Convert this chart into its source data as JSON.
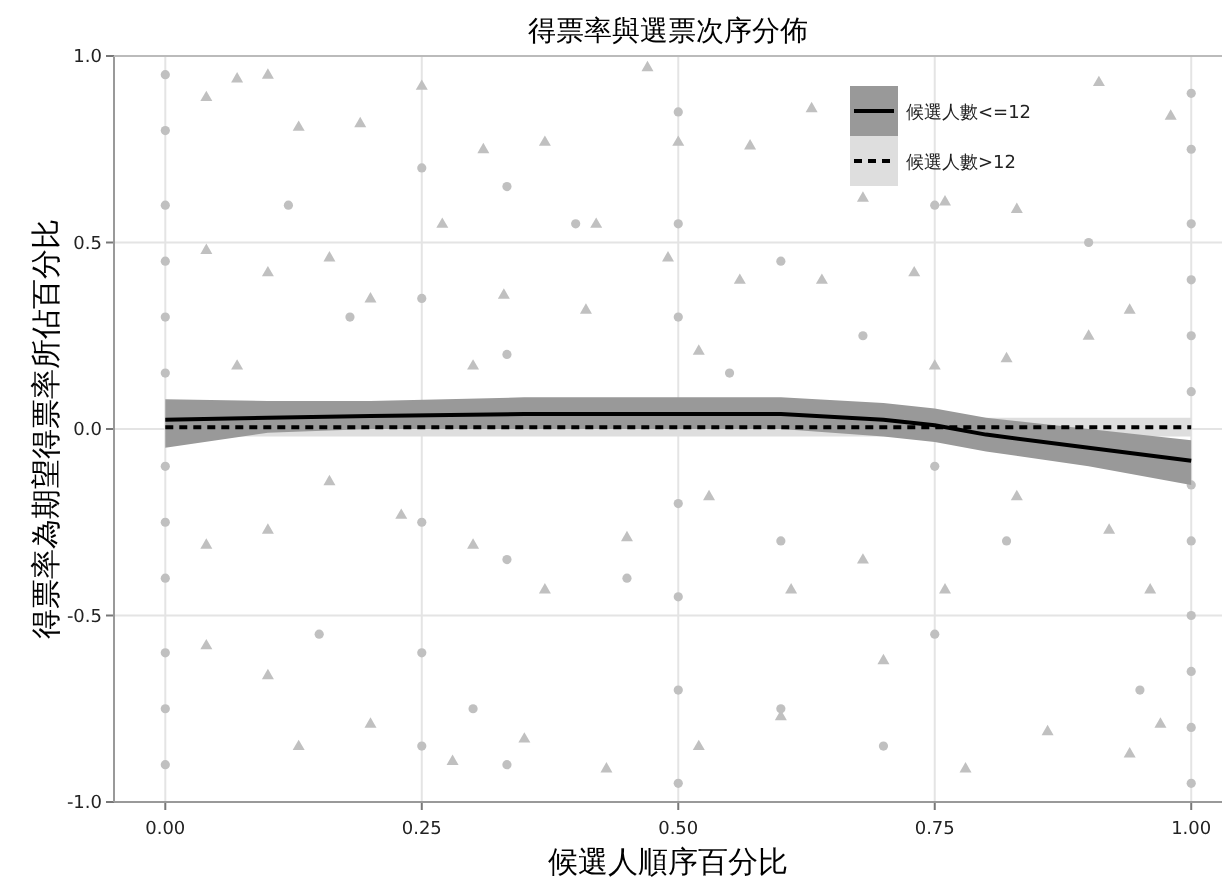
{
  "chart_data": {
    "type": "scatter",
    "title": "得票率與選票次序分佈",
    "xlabel": "候選人順序百分比",
    "ylabel": "得票率為期望得票率所佔百分比",
    "xlim": [
      -0.05,
      1.03
    ],
    "ylim": [
      -1,
      1
    ],
    "xticks": [
      {
        "value": 0,
        "label": "0.00"
      },
      {
        "value": 0.25,
        "label": "0.25"
      },
      {
        "value": 0.5,
        "label": "0.50"
      },
      {
        "value": 0.75,
        "label": "0.75"
      },
      {
        "value": 1,
        "label": "1.00"
      }
    ],
    "yticks": [
      {
        "value": -1,
        "label": "-1.0"
      },
      {
        "value": -0.5,
        "label": "-0.5"
      },
      {
        "value": 0,
        "label": "0.0"
      },
      {
        "value": 0.5,
        "label": "0.5"
      },
      {
        "value": 1,
        "label": "1.0"
      }
    ],
    "grid": true,
    "legend": "top right",
    "series": [
      {
        "marker": "triangle",
        "color": "#c0c0c0",
        "x": [
          0.04,
          0.07,
          0.1,
          0.13,
          0.19,
          0.25,
          0.31,
          0.37,
          0.42,
          0.47,
          0.5,
          0.57,
          0.63,
          0.68,
          0.76,
          0.83,
          0.91,
          0.98,
          0.04,
          0.1,
          0.16,
          0.2,
          0.27,
          0.33,
          0.41,
          0.49,
          0.56,
          0.64,
          0.73,
          0.82,
          0.9,
          0.94,
          0.07,
          0.3,
          0.52,
          0.75,
          0.04,
          0.1,
          0.16,
          0.23,
          0.3,
          0.37,
          0.45,
          0.53,
          0.61,
          0.68,
          0.76,
          0.83,
          0.92,
          0.96,
          0.04,
          0.1,
          0.13,
          0.2,
          0.28,
          0.35,
          0.43,
          0.52,
          0.6,
          0.7,
          0.78,
          0.86,
          0.94,
          0.97
        ],
        "values": [
          0.89,
          0.94,
          0.95,
          0.81,
          0.82,
          0.92,
          0.75,
          0.77,
          0.55,
          0.97,
          0.77,
          0.76,
          0.86,
          0.62,
          0.61,
          0.59,
          0.93,
          0.84,
          0.48,
          0.42,
          0.46,
          0.35,
          0.55,
          0.36,
          0.32,
          0.46,
          0.4,
          0.4,
          0.42,
          0.19,
          0.25,
          0.32,
          0.17,
          0.17,
          0.21,
          0.17,
          -0.31,
          -0.27,
          -0.14,
          -0.23,
          -0.31,
          -0.43,
          -0.29,
          -0.18,
          -0.43,
          -0.35,
          -0.43,
          -0.18,
          -0.27,
          -0.43,
          -0.58,
          -0.66,
          -0.85,
          -0.79,
          -0.89,
          -0.83,
          -0.91,
          -0.85,
          -0.77,
          -0.62,
          -0.91,
          -0.81,
          -0.87,
          -0.79
        ]
      },
      {
        "marker": "circle",
        "color": "#c0c0c0",
        "x": [
          0,
          0,
          0,
          0,
          0,
          0,
          0,
          0,
          0,
          0,
          0,
          0,
          1,
          1,
          1,
          1,
          1,
          1,
          1,
          1,
          1,
          1,
          1,
          1,
          0.5,
          0.5,
          0.5,
          0.5,
          0.5,
          0.5,
          0.5,
          0.25,
          0.25,
          0.25,
          0.25,
          0.25,
          0.333,
          0.333,
          0.333,
          0.333,
          0.6,
          0.6,
          0.6,
          0.75,
          0.75,
          0.75,
          0.12,
          0.18,
          0.4,
          0.45,
          0.68,
          0.82,
          0.9,
          0.95,
          0.15,
          0.3,
          0.55,
          0.7
        ],
        "values": [
          0.95,
          0.8,
          0.6,
          0.45,
          0.3,
          0.15,
          -0.1,
          -0.25,
          -0.4,
          -0.6,
          -0.75,
          -0.9,
          0.9,
          0.75,
          0.55,
          0.4,
          0.25,
          0.1,
          -0.15,
          -0.3,
          -0.5,
          -0.65,
          -0.8,
          -0.95,
          0.85,
          0.55,
          0.3,
          -0.2,
          -0.45,
          -0.7,
          -0.95,
          0.7,
          0.35,
          -0.25,
          -0.6,
          -0.85,
          0.65,
          0.2,
          -0.35,
          -0.9,
          0.45,
          -0.3,
          -0.75,
          0.6,
          -0.1,
          -0.55,
          0.6,
          0.3,
          0.55,
          -0.4,
          0.25,
          -0.3,
          0.5,
          -0.7,
          -0.55,
          -0.75,
          0.15,
          -0.85
        ]
      },
      {
        "type": "line",
        "name": "候選人數<=12",
        "color": "#000000",
        "line_style": "solid",
        "x": [
          0,
          0.1,
          0.2,
          0.35,
          0.5,
          0.6,
          0.7,
          0.75,
          0.8,
          0.9,
          1.0
        ],
        "values": [
          0.025,
          0.03,
          0.035,
          0.04,
          0.04,
          0.04,
          0.025,
          0.01,
          -0.015,
          -0.05,
          -0.085
        ],
        "upper": [
          0.08,
          0.075,
          0.075,
          0.085,
          0.085,
          0.085,
          0.07,
          0.055,
          0.03,
          0.0,
          -0.03
        ],
        "lower": [
          -0.05,
          -0.01,
          0.0,
          0.0,
          0.0,
          0.0,
          -0.02,
          -0.035,
          -0.06,
          -0.1,
          -0.15
        ]
      },
      {
        "type": "line",
        "name": "候選人數>12",
        "color": "#000000",
        "line_style": "dashed",
        "x": [
          0,
          0.5,
          1.0
        ],
        "values": [
          0.005,
          0.005,
          0.005
        ],
        "upper": [
          0.03,
          0.03,
          0.03
        ],
        "lower": [
          -0.02,
          -0.02,
          -0.02
        ]
      }
    ]
  }
}
